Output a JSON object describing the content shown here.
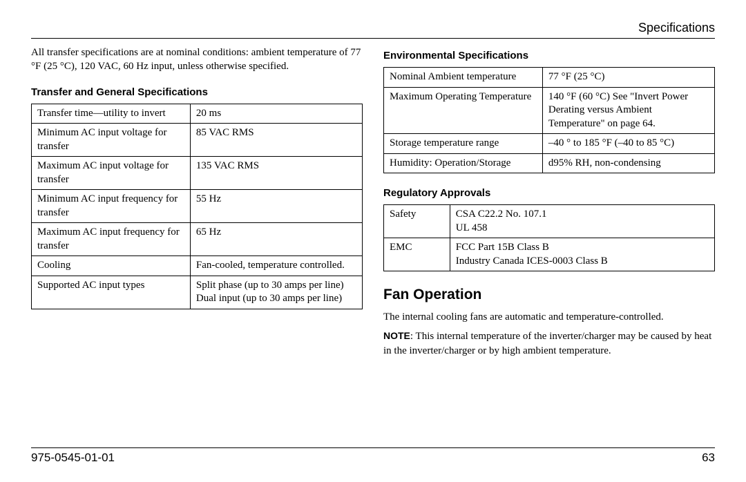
{
  "header": {
    "title": "Specifications"
  },
  "left": {
    "intro": "All transfer specifications are at nominal conditions: ambient temperature of 77 °F (25 °C), 120 VAC, 60 Hz input, unless otherwise specified.",
    "transfer": {
      "title": "Transfer and General Specifications",
      "rows": [
        {
          "k": "Transfer time—utility to invert",
          "v": "20 ms"
        },
        {
          "k": "Minimum AC input voltage for transfer",
          "v": "85 VAC RMS"
        },
        {
          "k": "Maximum AC input voltage for transfer",
          "v": "135 VAC RMS"
        },
        {
          "k": "Minimum AC input frequency for transfer",
          "v": "55 Hz"
        },
        {
          "k": "Maximum AC input frequency for transfer",
          "v": "65 Hz"
        },
        {
          "k": "Cooling",
          "v": "Fan-cooled, temperature controlled."
        },
        {
          "k": "Supported AC input types",
          "v": "Split phase (up to 30 amps per line)\nDual input (up to 30 amps per line)"
        }
      ]
    }
  },
  "right": {
    "env": {
      "title": "Environmental Specifications",
      "rows": [
        {
          "k": "Nominal Ambient temperature",
          "v": "77 °F (25 °C)"
        },
        {
          "k": "Maximum Operating Temperature",
          "v": "140 °F (60 °C) See \"Invert Power Derating versus Ambient Temperature\" on page 64."
        },
        {
          "k": "Storage temperature range",
          "v": "–40 ° to 185 °F (–40 to 85 °C)"
        },
        {
          "k": "Humidity: Operation/Storage",
          "v": "d95% RH, non-condensing"
        }
      ]
    },
    "reg": {
      "title": "Regulatory Approvals",
      "rows": [
        {
          "k": "Safety",
          "v": "CSA C22.2 No. 107.1\nUL 458"
        },
        {
          "k": "EMC",
          "v": "FCC Part 15B Class B\nIndustry Canada ICES-0003 Class B"
        }
      ]
    },
    "fan": {
      "title": "Fan Operation",
      "p1": "The internal cooling fans are automatic and temperature-controlled.",
      "note_label": "NOTE",
      "note_body": ": This internal temperature of the inverter/charger may be caused by heat in the inverter/charger or by high ambient temperature."
    }
  },
  "footer": {
    "doc": "975-0545-01-01",
    "page": "63"
  },
  "style": {
    "col_widths": {
      "transfer_k": "55%",
      "env_k": "48%",
      "reg_k": "20%"
    }
  }
}
